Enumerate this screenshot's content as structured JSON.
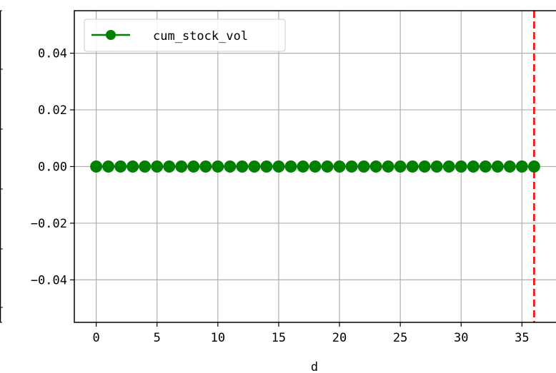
{
  "chart_data": {
    "type": "line",
    "title": "",
    "xlabel": "d",
    "ylabel": "",
    "xlim": [
      -1.8,
      37.8
    ],
    "ylim": [
      -0.055,
      0.055
    ],
    "x_ticks": [
      0,
      5,
      10,
      15,
      20,
      25,
      30,
      35
    ],
    "x_tick_labels": [
      "0",
      "5",
      "10",
      "15",
      "20",
      "25",
      "30",
      "35"
    ],
    "y_ticks": [
      0.04,
      0.02,
      0.0,
      -0.02,
      -0.04
    ],
    "y_tick_labels": [
      "0.04",
      "0.02",
      "0.00",
      "−0.02",
      "−0.04"
    ],
    "grid": true,
    "legend_position": "top-left",
    "series": [
      {
        "name": "cum_stock_vol",
        "color": "#008000",
        "marker": "circle",
        "x": [
          0,
          1,
          2,
          3,
          4,
          5,
          6,
          7,
          8,
          9,
          10,
          11,
          12,
          13,
          14,
          15,
          16,
          17,
          18,
          19,
          20,
          21,
          22,
          23,
          24,
          25,
          26,
          27,
          28,
          29,
          30,
          31,
          32,
          33,
          34,
          35,
          36
        ],
        "values": [
          0,
          0,
          0,
          0,
          0,
          0,
          0,
          0,
          0,
          0,
          0,
          0,
          0,
          0,
          0,
          0,
          0,
          0,
          0,
          0,
          0,
          0,
          0,
          0,
          0,
          0,
          0,
          0,
          0,
          0,
          0,
          0,
          0,
          0,
          0,
          0,
          0
        ]
      }
    ],
    "reference_lines": [
      {
        "orientation": "vertical",
        "x": 36,
        "color": "#ff0000",
        "style": "dashed"
      }
    ]
  }
}
